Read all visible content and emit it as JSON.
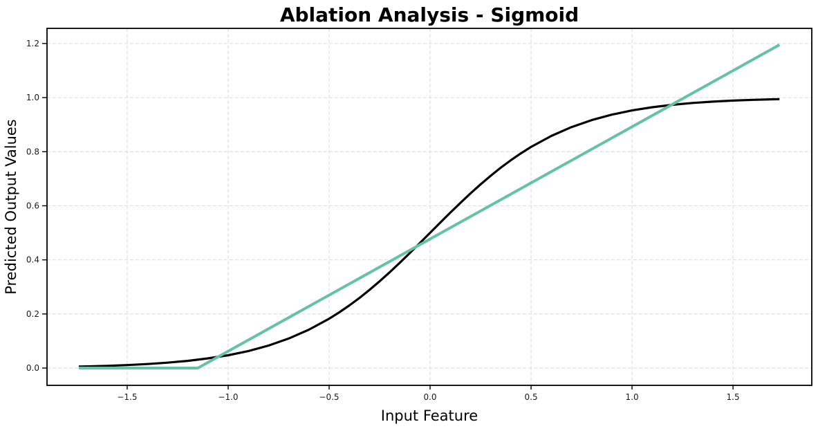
{
  "page": {
    "background": "#ffffff"
  },
  "chart_data": {
    "type": "line",
    "title": "Ablation Analysis - Sigmoid",
    "xlabel": "Input Feature",
    "ylabel": "Predicted Output Values",
    "xlim": [
      -1.897,
      1.89
    ],
    "ylim": [
      -0.064,
      1.256
    ],
    "grid": true,
    "grid_color": "#d9d9d9",
    "legend_position": "none",
    "x_ticks": {
      "values": [
        -1.5,
        -1.0,
        -0.5,
        0.0,
        0.5,
        1.0,
        1.5
      ],
      "labels": [
        "−1.5",
        "−1.0",
        "−0.5",
        "0.0",
        "0.5",
        "1.0",
        "1.5"
      ]
    },
    "y_ticks": {
      "values": [
        0.0,
        0.2,
        0.4,
        0.6,
        0.8,
        1.0,
        1.2
      ],
      "labels": [
        "0.0",
        "0.2",
        "0.4",
        "0.6",
        "0.8",
        "1.0",
        "1.2"
      ]
    },
    "series": [
      {
        "name": "black-sigmoid-curve",
        "color": "#000000",
        "width": 3.2,
        "x": [
          -1.74,
          -1.7,
          -1.6,
          -1.5,
          -1.4,
          -1.3,
          -1.2,
          -1.1,
          -1.0,
          -0.9,
          -0.8,
          -0.7,
          -0.6,
          -0.5,
          -0.45,
          -0.4,
          -0.35,
          -0.3,
          -0.25,
          -0.2,
          -0.15,
          -0.1,
          -0.05,
          0.0,
          0.05,
          0.1,
          0.15,
          0.2,
          0.25,
          0.3,
          0.35,
          0.4,
          0.45,
          0.5,
          0.6,
          0.7,
          0.8,
          0.9,
          1.0,
          1.1,
          1.2,
          1.3,
          1.4,
          1.5,
          1.6,
          1.7,
          1.73
        ],
        "y": [
          0.0054,
          0.0061,
          0.0082,
          0.011,
          0.0148,
          0.0198,
          0.0266,
          0.0357,
          0.0474,
          0.063,
          0.0832,
          0.1091,
          0.1419,
          0.1824,
          0.2059,
          0.2315,
          0.2592,
          0.2891,
          0.3208,
          0.3543,
          0.3894,
          0.4256,
          0.4626,
          0.5,
          0.5374,
          0.5744,
          0.6106,
          0.6457,
          0.6792,
          0.7109,
          0.7408,
          0.7685,
          0.7941,
          0.8176,
          0.8581,
          0.8909,
          0.9168,
          0.937,
          0.9526,
          0.9643,
          0.9734,
          0.9802,
          0.9852,
          0.989,
          0.9918,
          0.9939,
          0.9944
        ]
      },
      {
        "name": "green-piecewise-linear-line",
        "color": "#66c2a4",
        "width": 4,
        "x": [
          -1.74,
          -1.15,
          1.73
        ],
        "y": [
          0.0,
          0.0,
          1.195
        ]
      }
    ]
  }
}
